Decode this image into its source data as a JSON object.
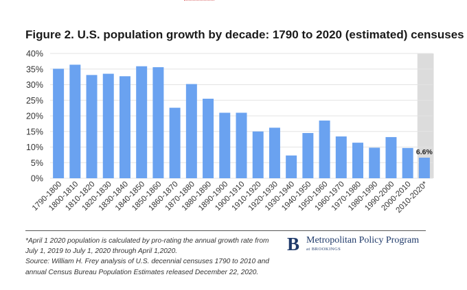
{
  "title": "Figure 2. U.S. population growth by decade: 1790 to 2020 (estimated) censuses",
  "footnote": "*April 1 2020 population is calculated by pro-rating the annual growth rate from July 1, 2019 to July 1, 2020 through April 1,2020.",
  "source": "Source: William H. Frey analysis of U.S. decennial censuses 1790 to 2010 and annual Census Bureau Population Estimates released December 22, 2020.",
  "logo": {
    "mark": "B",
    "name": "Metropolitan Policy Program",
    "sub": "at BROOKINGS"
  },
  "colors": {
    "bar": "#6aa2f0",
    "highlight_bar": "#6aa2f0",
    "highlight_band": "#dcdcdc",
    "grid": "#e3e3e3",
    "axis_text": "#333333"
  },
  "chart_data": {
    "type": "bar",
    "title": "Figure 2. U.S. population growth by decade: 1790 to 2020 (estimated) censuses",
    "xlabel": "",
    "ylabel": "",
    "ylim": [
      0,
      40
    ],
    "yticks": [
      "0%",
      "5%",
      "10%",
      "15%",
      "20%",
      "25%",
      "30%",
      "35%",
      "40%"
    ],
    "grid": true,
    "categories": [
      "1790-1800",
      "1800-1810",
      "1810-1820",
      "1820-1830",
      "1830-1840",
      "1840-1850",
      "1850-1860",
      "1860-1870",
      "1870-1880",
      "1880-1890",
      "1890-1900",
      "1900-1910",
      "1910-1920",
      "1920-1930",
      "1930-1940",
      "1940-1950",
      "1950-1960",
      "1960-1970",
      "1970-1980",
      "1980-1990",
      "1990-2000",
      "2000-2010",
      "2010-2020*"
    ],
    "values": [
      35.1,
      36.4,
      33.1,
      33.5,
      32.7,
      35.9,
      35.6,
      22.6,
      30.2,
      25.5,
      21.0,
      21.0,
      15.0,
      16.2,
      7.3,
      14.5,
      18.5,
      13.4,
      11.4,
      9.8,
      13.2,
      9.7,
      6.6
    ],
    "highlight_index": 22,
    "data_labels": [
      {
        "index": 22,
        "text": "6.6%"
      }
    ]
  }
}
